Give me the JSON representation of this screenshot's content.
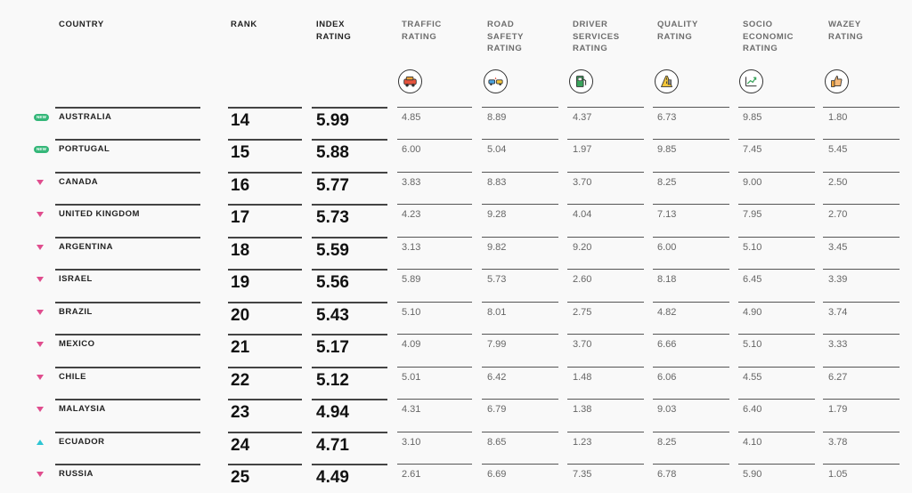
{
  "headers": {
    "country": [
      "COUNTRY"
    ],
    "rank": [
      "RANK"
    ],
    "index": [
      "INDEX",
      "RATING"
    ],
    "traffic": [
      "TRAFFIC",
      "RATING"
    ],
    "road_safety": [
      "ROAD",
      "SAFETY",
      "RATING"
    ],
    "driver_services": [
      "DRIVER",
      "SERVICES",
      "RATING"
    ],
    "quality": [
      "QUALITY",
      "RATING"
    ],
    "socio_economic": [
      "SOCIO",
      "ECONOMIC",
      "RATING"
    ],
    "wazey": [
      "WAZEY",
      "RATING"
    ]
  },
  "icons": {
    "traffic": "car-icon",
    "road_safety": "cars-collision-icon",
    "driver_services": "gas-pump-icon",
    "quality": "road-quality-icon",
    "socio_economic": "growth-chart-icon",
    "wazey": "thumbs-up-icon"
  },
  "colors": {
    "new_badge": "#35b779",
    "trend_down": "#e04d8e",
    "trend_up": "#2ec5d3"
  },
  "badge_new_label": "NEW",
  "rows": [
    {
      "indicator": "new",
      "country": "AUSTRALIA",
      "rank": "14",
      "index": "5.99",
      "traffic": "4.85",
      "road_safety": "8.89",
      "driver_services": "4.37",
      "quality": "6.73",
      "socio_economic": "9.85",
      "wazey": "1.80"
    },
    {
      "indicator": "new",
      "country": "PORTUGAL",
      "rank": "15",
      "index": "5.88",
      "traffic": "6.00",
      "road_safety": "5.04",
      "driver_services": "1.97",
      "quality": "9.85",
      "socio_economic": "7.45",
      "wazey": "5.45"
    },
    {
      "indicator": "down",
      "country": "CANADA",
      "rank": "16",
      "index": "5.77",
      "traffic": "3.83",
      "road_safety": "8.83",
      "driver_services": "3.70",
      "quality": "8.25",
      "socio_economic": "9.00",
      "wazey": "2.50"
    },
    {
      "indicator": "down",
      "country": "UNITED KINGDOM",
      "rank": "17",
      "index": "5.73",
      "traffic": "4.23",
      "road_safety": "9.28",
      "driver_services": "4.04",
      "quality": "7.13",
      "socio_economic": "7.95",
      "wazey": "2.70"
    },
    {
      "indicator": "down",
      "country": "ARGENTINA",
      "rank": "18",
      "index": "5.59",
      "traffic": "3.13",
      "road_safety": "9.82",
      "driver_services": "9.20",
      "quality": "6.00",
      "socio_economic": "5.10",
      "wazey": "3.45"
    },
    {
      "indicator": "down",
      "country": "ISRAEL",
      "rank": "19",
      "index": "5.56",
      "traffic": "5.89",
      "road_safety": "5.73",
      "driver_services": "2.60",
      "quality": "8.18",
      "socio_economic": "6.45",
      "wazey": "3.39"
    },
    {
      "indicator": "down",
      "country": "BRAZIL",
      "rank": "20",
      "index": "5.43",
      "traffic": "5.10",
      "road_safety": "8.01",
      "driver_services": "2.75",
      "quality": "4.82",
      "socio_economic": "4.90",
      "wazey": "3.74"
    },
    {
      "indicator": "down",
      "country": "MEXICO",
      "rank": "21",
      "index": "5.17",
      "traffic": "4.09",
      "road_safety": "7.99",
      "driver_services": "3.70",
      "quality": "6.66",
      "socio_economic": "5.10",
      "wazey": "3.33"
    },
    {
      "indicator": "down",
      "country": "CHILE",
      "rank": "22",
      "index": "5.12",
      "traffic": "5.01",
      "road_safety": "6.42",
      "driver_services": "1.48",
      "quality": "6.06",
      "socio_economic": "4.55",
      "wazey": "6.27"
    },
    {
      "indicator": "down",
      "country": "MALAYSIA",
      "rank": "23",
      "index": "4.94",
      "traffic": "4.31",
      "road_safety": "6.79",
      "driver_services": "1.38",
      "quality": "9.03",
      "socio_economic": "6.40",
      "wazey": "1.79"
    },
    {
      "indicator": "up",
      "country": "ECUADOR",
      "rank": "24",
      "index": "4.71",
      "traffic": "3.10",
      "road_safety": "8.65",
      "driver_services": "1.23",
      "quality": "8.25",
      "socio_economic": "4.10",
      "wazey": "3.78"
    },
    {
      "indicator": "down",
      "country": "RUSSIA",
      "rank": "25",
      "index": "4.49",
      "traffic": "2.61",
      "road_safety": "6.69",
      "driver_services": "7.35",
      "quality": "6.78",
      "socio_economic": "5.90",
      "wazey": "1.05"
    }
  ]
}
